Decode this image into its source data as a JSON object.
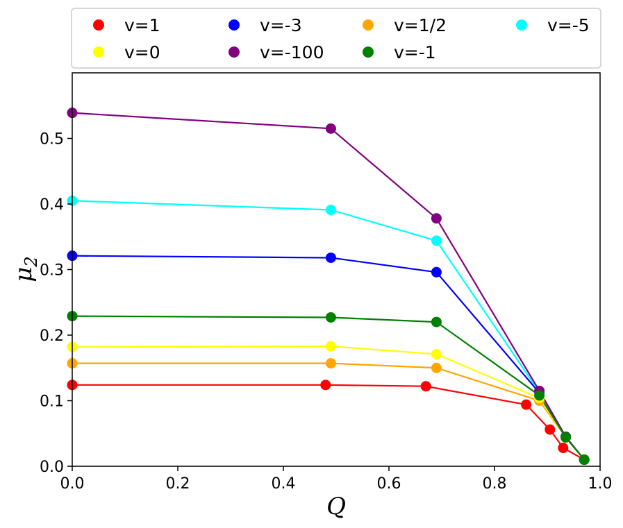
{
  "chart_data": {
    "type": "line",
    "xlabel": "Q",
    "ylabel": "μ",
    "ylabel_subscript": "2",
    "xlim": [
      0.0,
      1.0
    ],
    "ylim": [
      0.0,
      0.6
    ],
    "xticks": [
      0.0,
      0.2,
      0.4,
      0.6,
      0.8,
      1.0
    ],
    "xtick_labels": [
      "0.0",
      "0.2",
      "0.4",
      "0.6",
      "0.8",
      "1.0"
    ],
    "yticks": [
      0.0,
      0.1,
      0.2,
      0.3,
      0.4,
      0.5
    ],
    "ytick_labels": [
      "0.0",
      "0.1",
      "0.2",
      "0.3",
      "0.4",
      "0.5"
    ],
    "legend_position": "top, outside plot",
    "series": [
      {
        "name": "v=1",
        "color": "#ff0000",
        "x": [
          0.0,
          0.48,
          0.67,
          0.86,
          0.905,
          0.93,
          0.97
        ],
        "y": [
          0.124,
          0.124,
          0.122,
          0.094,
          0.056,
          0.028,
          0.01
        ]
      },
      {
        "name": "v=-3",
        "color": "#0000ff",
        "x": [
          0.0,
          0.49,
          0.69,
          0.885,
          0.935,
          0.97
        ],
        "y": [
          0.321,
          0.318,
          0.296,
          0.112,
          0.045,
          0.01
        ]
      },
      {
        "name": "v=1/2",
        "color": "#ffa500",
        "x": [
          0.0,
          0.49,
          0.69,
          0.885,
          0.935,
          0.97
        ],
        "y": [
          0.157,
          0.157,
          0.15,
          0.1,
          0.044,
          0.01
        ]
      },
      {
        "name": "v=-5",
        "color": "#00ffff",
        "x": [
          0.0,
          0.49,
          0.69,
          0.885,
          0.935,
          0.97
        ],
        "y": [
          0.405,
          0.391,
          0.344,
          0.113,
          0.045,
          0.01
        ]
      },
      {
        "name": "v=0",
        "color": "#ffff00",
        "x": [
          0.0,
          0.49,
          0.69,
          0.885,
          0.935,
          0.97
        ],
        "y": [
          0.182,
          0.183,
          0.171,
          0.104,
          0.044,
          0.01
        ]
      },
      {
        "name": "v=-100",
        "color": "#800080",
        "x": [
          0.0,
          0.49,
          0.69,
          0.885,
          0.935,
          0.97
        ],
        "y": [
          0.539,
          0.515,
          0.378,
          0.115,
          0.045,
          0.01
        ]
      },
      {
        "name": "v=-1",
        "color": "#008000",
        "x": [
          0.0,
          0.49,
          0.69,
          0.885,
          0.935,
          0.97
        ],
        "y": [
          0.229,
          0.227,
          0.22,
          0.108,
          0.044,
          0.01
        ]
      }
    ]
  }
}
